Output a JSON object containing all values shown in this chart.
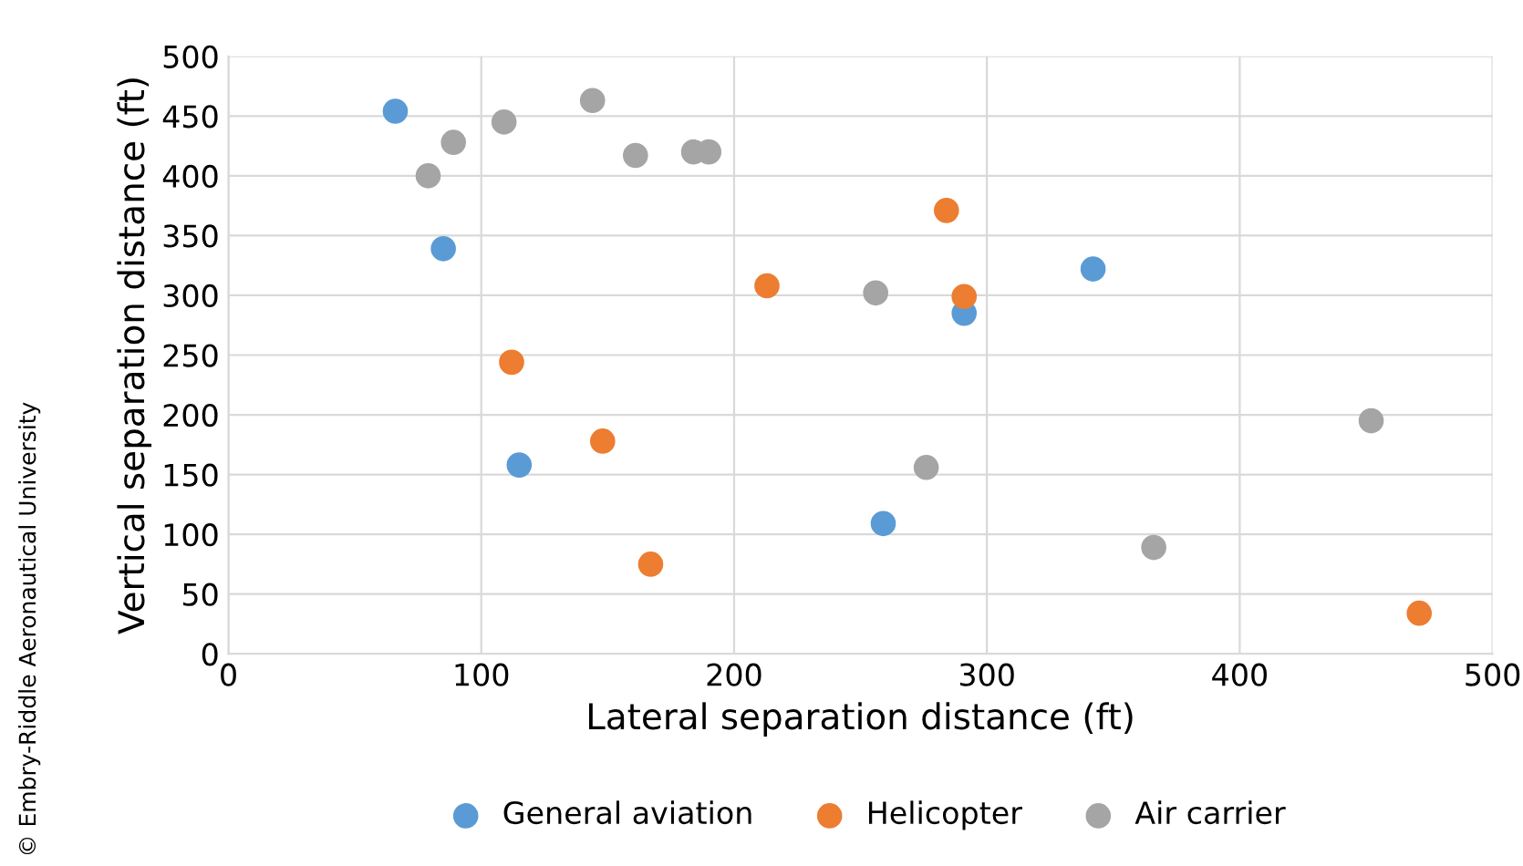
{
  "chart_data": {
    "type": "scatter",
    "xlabel": "Lateral separation distance (ft)",
    "ylabel": "Vertical separation distance (ft)",
    "annotations": [
      "© Embry-Riddle Aeronautical University"
    ],
    "xlim": [
      0,
      500
    ],
    "xticks": [
      0,
      100,
      200,
      300,
      400,
      500
    ],
    "ylim": [
      0,
      500
    ],
    "yticks": [
      0,
      50,
      100,
      150,
      200,
      250,
      300,
      350,
      400,
      450,
      500
    ],
    "grid": true,
    "legend": "bottom",
    "marker": "circle",
    "series": [
      {
        "name": "General aviation",
        "color": "#5b9bd5",
        "x": [
          66,
          85,
          115,
          259,
          291,
          342
        ],
        "values": [
          454,
          339,
          158,
          109,
          285,
          322
        ]
      },
      {
        "name": "Helicopter",
        "color": "#ed7d31",
        "x": [
          112,
          148,
          167,
          213,
          284,
          291,
          471
        ],
        "values": [
          244,
          178,
          75,
          308,
          371,
          299,
          34
        ]
      },
      {
        "name": "Air carrier",
        "color": "#a5a5a5",
        "x": [
          79,
          89,
          109,
          144,
          161,
          184,
          190,
          256,
          276,
          366,
          452
        ],
        "values": [
          400,
          428,
          445,
          463,
          417,
          420,
          420,
          302,
          156,
          89,
          195
        ]
      }
    ]
  }
}
